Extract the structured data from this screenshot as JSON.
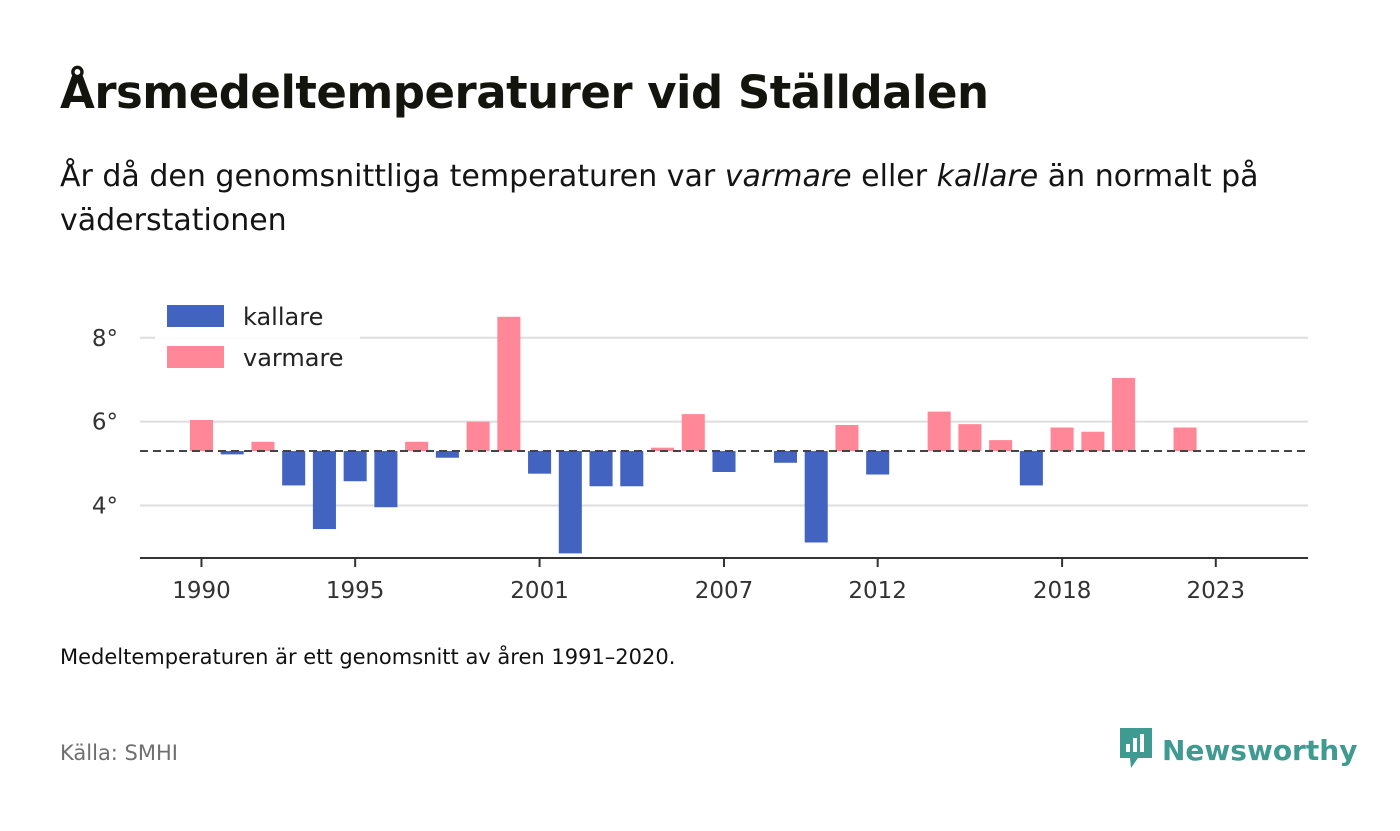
{
  "title": "Årsmedeltemperaturer vid Ställdalen",
  "subtitle": {
    "part1": "År då den genomsnittliga temperaturen var ",
    "em1": "varmare",
    "part2": " eller ",
    "em2": "kallare",
    "part3": " än normalt på väderstationen"
  },
  "note": "Medeltemperaturen är ett genomsnitt av åren 1991–2020.",
  "source": "Källa: SMHI",
  "logo": {
    "text": "Newsworthy",
    "icon": "newsworthy-chart-icon",
    "color": "#3f9a92"
  },
  "chart_data": {
    "type": "bar",
    "baseline": 5.3,
    "ylim": [
      2.75,
      8.9
    ],
    "xlim": [
      1988,
      2026
    ],
    "grid": true,
    "legend_position": "top-left",
    "yticks": [
      {
        "value": 4,
        "label": "4°"
      },
      {
        "value": 6,
        "label": "6°"
      },
      {
        "value": 8,
        "label": "8°"
      }
    ],
    "xticks": [
      {
        "value": 1990,
        "label": "1990"
      },
      {
        "value": 1995,
        "label": "1995"
      },
      {
        "value": 2001,
        "label": "2001"
      },
      {
        "value": 2007,
        "label": "2007"
      },
      {
        "value": 2012,
        "label": "2012"
      },
      {
        "value": 2018,
        "label": "2018"
      },
      {
        "value": 2023,
        "label": "2023"
      }
    ],
    "colors": {
      "kallare": "#4263bf",
      "varmare": "#ff8797"
    },
    "legend": [
      {
        "key": "kallare",
        "label": "kallare"
      },
      {
        "key": "varmare",
        "label": "varmare"
      }
    ],
    "years": [
      1990,
      1991,
      1992,
      1993,
      1994,
      1995,
      1996,
      1997,
      1998,
      1999,
      2000,
      2001,
      2002,
      2003,
      2004,
      2005,
      2006,
      2007,
      2008,
      2009,
      2010,
      2011,
      2012,
      2013,
      2014,
      2015,
      2016,
      2017,
      2018,
      2019,
      2020,
      2021,
      2022
    ],
    "values": [
      6.04,
      5.22,
      5.52,
      4.48,
      3.44,
      4.58,
      3.96,
      5.52,
      5.14,
      6.0,
      8.5,
      4.76,
      2.86,
      4.46,
      4.46,
      5.38,
      6.18,
      4.8,
      null,
      5.02,
      3.12,
      5.92,
      4.74,
      null,
      6.24,
      5.94,
      5.56,
      4.48,
      5.86,
      5.76,
      7.04,
      null,
      5.86
    ]
  }
}
